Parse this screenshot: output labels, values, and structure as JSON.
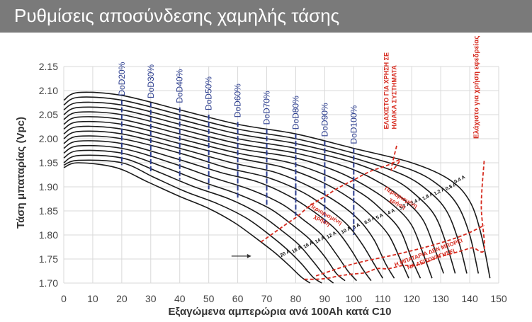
{
  "header": {
    "title": "Ρυθμίσεις αποσύνδεσης χαμηλής τάσης"
  },
  "colors": {
    "curve": "#1a1a1a",
    "dod": "#2b3d8f",
    "annotation": "#d62b1f",
    "grid": "#d9d9d9",
    "header_bg": "#7a7a7a"
  },
  "chart_data": {
    "type": "line",
    "xlabel": "Εξαγώμενα αμπερώρια ανά 100Ah κατά C10",
    "ylabel": "Τάση μπαταρίας (Vpc)",
    "xlim": [
      0,
      150
    ],
    "ylim": [
      1.7,
      2.15
    ],
    "x_ticks": [
      0,
      10,
      20,
      30,
      40,
      50,
      60,
      70,
      80,
      90,
      100,
      110,
      120,
      130,
      140,
      150
    ],
    "y_ticks": [
      1.7,
      1.75,
      1.8,
      1.85,
      1.9,
      1.95,
      2.0,
      2.05,
      2.1,
      2.15
    ],
    "grid": true,
    "series": [
      {
        "name": "0.4 A",
        "x": [
          0,
          5,
          20,
          40,
          60,
          80,
          100,
          120,
          133,
          140,
          144,
          147
        ],
        "y": [
          2.08,
          2.096,
          2.09,
          2.06,
          2.03,
          2.01,
          1.98,
          1.95,
          1.915,
          1.87,
          1.8,
          1.71
        ]
      },
      {
        "name": "0.8 A",
        "x": [
          0,
          5,
          20,
          40,
          60,
          80,
          100,
          120,
          130,
          136,
          140,
          143
        ],
        "y": [
          2.07,
          2.086,
          2.08,
          2.05,
          2.02,
          2.0,
          1.97,
          1.935,
          1.9,
          1.86,
          1.8,
          1.72
        ]
      },
      {
        "name": "1.2 A",
        "x": [
          0,
          5,
          20,
          40,
          60,
          80,
          100,
          117,
          126,
          132,
          136,
          139
        ],
        "y": [
          2.06,
          2.075,
          2.07,
          2.04,
          2.01,
          1.99,
          1.96,
          1.925,
          1.89,
          1.85,
          1.79,
          1.72
        ]
      },
      {
        "name": "1.8 A",
        "x": [
          0,
          5,
          20,
          40,
          60,
          80,
          100,
          114,
          122,
          128,
          132,
          135
        ],
        "y": [
          2.05,
          2.065,
          2.06,
          2.03,
          2.0,
          1.98,
          1.95,
          1.915,
          1.88,
          1.84,
          1.78,
          1.72
        ]
      },
      {
        "name": "2.4 A",
        "x": [
          0,
          5,
          20,
          40,
          60,
          80,
          98,
          110,
          118,
          124,
          128,
          131
        ],
        "y": [
          2.04,
          2.055,
          2.05,
          2.02,
          1.99,
          1.97,
          1.94,
          1.905,
          1.87,
          1.83,
          1.77,
          1.72
        ]
      },
      {
        "name": "3.2 A",
        "x": [
          0,
          5,
          20,
          40,
          60,
          80,
          95,
          106,
          114,
          120,
          124,
          127
        ],
        "y": [
          2.03,
          2.045,
          2.04,
          2.01,
          1.98,
          1.96,
          1.93,
          1.895,
          1.86,
          1.82,
          1.76,
          1.71
        ]
      },
      {
        "name": "4 A",
        "x": [
          0,
          5,
          20,
          40,
          60,
          78,
          92,
          103,
          110,
          116,
          120,
          123
        ],
        "y": [
          2.02,
          2.035,
          2.03,
          2.0,
          1.97,
          1.95,
          1.92,
          1.885,
          1.85,
          1.81,
          1.75,
          1.71
        ]
      },
      {
        "name": "5 A",
        "x": [
          0,
          5,
          20,
          40,
          60,
          76,
          89,
          99,
          106,
          112,
          116,
          119
        ],
        "y": [
          2.01,
          2.025,
          2.02,
          1.99,
          1.96,
          1.94,
          1.91,
          1.875,
          1.84,
          1.8,
          1.75,
          1.71
        ]
      },
      {
        "name": "6.5 A",
        "x": [
          0,
          5,
          20,
          40,
          58,
          73,
          85,
          95,
          102,
          107,
          111,
          114
        ],
        "y": [
          2.0,
          2.015,
          2.01,
          1.98,
          1.95,
          1.93,
          1.9,
          1.865,
          1.83,
          1.79,
          1.74,
          1.71
        ]
      },
      {
        "name": "8 A",
        "x": [
          0,
          5,
          20,
          40,
          56,
          70,
          82,
          91,
          98,
          103,
          107,
          110
        ],
        "y": [
          1.99,
          2.005,
          2.0,
          1.97,
          1.94,
          1.92,
          1.89,
          1.855,
          1.82,
          1.78,
          1.74,
          1.71
        ]
      },
      {
        "name": "10 A",
        "x": [
          0,
          5,
          20,
          38,
          54,
          67,
          78,
          87,
          94,
          99,
          103,
          106
        ],
        "y": [
          1.98,
          1.995,
          1.99,
          1.96,
          1.93,
          1.91,
          1.88,
          1.845,
          1.81,
          1.77,
          1.73,
          1.705
        ]
      },
      {
        "name": "12 A",
        "x": [
          0,
          5,
          20,
          37,
          51,
          64,
          75,
          83,
          89,
          94,
          98,
          101
        ],
        "y": [
          1.97,
          1.985,
          1.98,
          1.95,
          1.92,
          1.895,
          1.865,
          1.83,
          1.8,
          1.76,
          1.725,
          1.705
        ]
      },
      {
        "name": "14 A",
        "x": [
          0,
          5,
          20,
          35,
          48,
          60,
          71,
          79,
          85,
          90,
          94,
          97
        ],
        "y": [
          1.96,
          1.975,
          1.97,
          1.94,
          1.91,
          1.885,
          1.855,
          1.82,
          1.79,
          1.755,
          1.72,
          1.705
        ]
      },
      {
        "name": "16 A",
        "x": [
          0,
          5,
          20,
          33,
          45,
          57,
          67,
          75,
          81,
          86,
          90,
          93
        ],
        "y": [
          1.95,
          1.965,
          1.96,
          1.93,
          1.9,
          1.875,
          1.845,
          1.81,
          1.78,
          1.745,
          1.715,
          1.7
        ]
      },
      {
        "name": "18 A",
        "x": [
          0,
          5,
          20,
          31,
          42,
          53,
          63,
          71,
          77,
          82,
          86,
          89
        ],
        "y": [
          1.945,
          1.955,
          1.95,
          1.92,
          1.89,
          1.865,
          1.835,
          1.8,
          1.77,
          1.74,
          1.712,
          1.7
        ]
      },
      {
        "name": "20 A",
        "x": [
          0,
          5,
          18,
          29,
          40,
          50,
          59,
          67,
          73,
          78,
          82,
          85
        ],
        "y": [
          1.94,
          1.95,
          1.94,
          1.91,
          1.88,
          1.855,
          1.825,
          1.79,
          1.762,
          1.735,
          1.712,
          1.7
        ]
      }
    ],
    "dod_lines": [
      {
        "label": "DoD20%",
        "x": 20,
        "y_top": 2.08,
        "y_bottom": 1.945
      },
      {
        "label": "DoD30%",
        "x": 30,
        "y_top": 2.075,
        "y_bottom": 1.93
      },
      {
        "label": "DoD40%",
        "x": 40,
        "y_top": 2.065,
        "y_bottom": 1.915
      },
      {
        "label": "DoD50%",
        "x": 50,
        "y_top": 2.05,
        "y_bottom": 1.895
      },
      {
        "label": "DoD60%",
        "x": 60,
        "y_top": 2.035,
        "y_bottom": 1.875
      },
      {
        "label": "DoD70%",
        "x": 70,
        "y_top": 2.02,
        "y_bottom": 1.86
      },
      {
        "label": "DoD80%",
        "x": 80,
        "y_top": 2.01,
        "y_bottom": 1.84
      },
      {
        "label": "DoD90%",
        "x": 90,
        "y_top": 1.995,
        "y_bottom": 1.82
      },
      {
        "label": "DoD100%",
        "x": 100,
        "y_top": 1.98,
        "y_bottom": 1.8
      }
    ],
    "annotations": {
      "solar_min": {
        "lines": [
          "ΕΛΑΧΙΣΤΟ ΓΙΑ ΧΡΗΣΗ ΣΕ",
          "ΗΛΙΑΚΑ ΣΥΣΤΗΜΑΤΑ"
        ],
        "x": 112,
        "y": 2.02,
        "anchor": "start"
      },
      "standby_min": {
        "lines": [
          "Ελάχιστο για χρήση εφεδρείας"
        ],
        "x": 143,
        "y": 2.0,
        "anchor": "start"
      },
      "limited_use_1": {
        "lines": [
          "Περιορισμένη",
          "χρήση"
        ],
        "x": 90,
        "y": 1.84,
        "anchor": "middle"
      },
      "limited_use_2": {
        "lines": [
          "Περιορισμένη",
          "χρήση"
        ],
        "x": 116,
        "y": 1.875,
        "anchor": "middle"
      },
      "battery_fail": {
        "lines": [
          "Η ΜΠΑΤΑΡΙΑ ΔΕΝ ΜΠΟΡΕΙ",
          "ΝΑ ΛΕΙΤΟΥΡΓΗΣΕΙ"
        ],
        "x": 126,
        "y": 1.76,
        "anchor": "middle"
      }
    }
  }
}
